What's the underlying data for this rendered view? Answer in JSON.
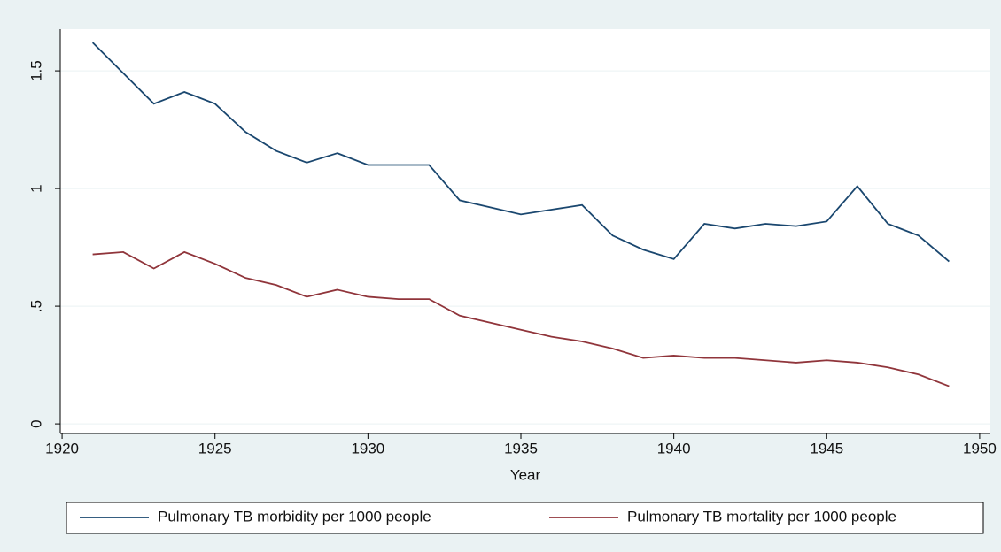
{
  "chart_data": {
    "type": "line",
    "x": [
      1921,
      1922,
      1923,
      1924,
      1925,
      1926,
      1927,
      1928,
      1929,
      1930,
      1931,
      1932,
      1933,
      1934,
      1935,
      1936,
      1937,
      1938,
      1939,
      1940,
      1941,
      1942,
      1943,
      1944,
      1945,
      1946,
      1947,
      1948,
      1949
    ],
    "series": [
      {
        "name": "Pulmonary TB morbidity per 1000 people",
        "color": "#1a476f",
        "values": [
          1.62,
          1.49,
          1.36,
          1.41,
          1.36,
          1.24,
          1.16,
          1.11,
          1.15,
          1.1,
          1.1,
          1.1,
          0.95,
          0.92,
          0.89,
          0.91,
          0.93,
          0.8,
          0.74,
          0.7,
          0.85,
          0.83,
          0.85,
          0.84,
          0.86,
          1.01,
          0.85,
          0.8,
          0.69
        ]
      },
      {
        "name": "Pulmonary TB mortality per 1000 people",
        "color": "#90353b",
        "values": [
          0.72,
          0.73,
          0.66,
          0.73,
          0.68,
          0.62,
          0.59,
          0.54,
          0.57,
          0.54,
          0.53,
          0.53,
          0.46,
          0.43,
          0.4,
          0.37,
          0.35,
          0.32,
          0.28,
          0.29,
          0.28,
          0.28,
          0.27,
          0.26,
          0.27,
          0.26,
          0.24,
          0.21,
          0.16
        ]
      }
    ],
    "x_label": "Year",
    "xlim": [
      1919.94,
      1950.35
    ],
    "xticks": [
      1920,
      1925,
      1930,
      1935,
      1940,
      1945,
      1950
    ],
    "ylim": [
      -0.041,
      1.677
    ],
    "yticks": [
      0,
      {
        "value": 0.5,
        "label": ".5"
      },
      1,
      1.5
    ],
    "grid": true,
    "legend": "bottom"
  }
}
